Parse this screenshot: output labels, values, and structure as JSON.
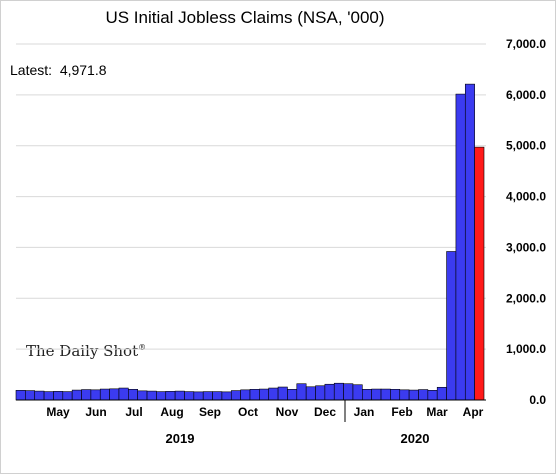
{
  "chart_data": {
    "type": "bar",
    "title": "US Initial Jobless Claims (NSA, '000)",
    "annotation": {
      "label": "Latest:",
      "value": "4,971.8"
    },
    "watermark": "The Daily Shot",
    "watermark_mark": "®",
    "y_ticks": [
      "0.0",
      "1,000.0",
      "2,000.0",
      "3,000.0",
      "4,000.0",
      "5,000.0",
      "6,000.0",
      "7,000.0"
    ],
    "ylim": [
      0,
      7000
    ],
    "y_axis_side": "right",
    "grid": "horizontal",
    "month_labels": [
      "May",
      "Jun",
      "Jul",
      "Aug",
      "Sep",
      "Oct",
      "Nov",
      "Dec",
      "Jan",
      "Feb",
      "Mar",
      "Apr"
    ],
    "year_labels": [
      "2019",
      "2020"
    ],
    "series_colors": {
      "default": "#3b3bf0",
      "latest": "#ff1a1a"
    },
    "values": [
      190,
      185,
      175,
      165,
      170,
      165,
      195,
      205,
      200,
      215,
      220,
      235,
      210,
      180,
      175,
      165,
      170,
      175,
      165,
      160,
      165,
      165,
      160,
      185,
      200,
      210,
      215,
      235,
      255,
      210,
      320,
      260,
      280,
      310,
      330,
      320,
      300,
      210,
      215,
      215,
      210,
      200,
      195,
      205,
      190,
      250,
      2920,
      6015,
      6211,
      4972
    ]
  }
}
